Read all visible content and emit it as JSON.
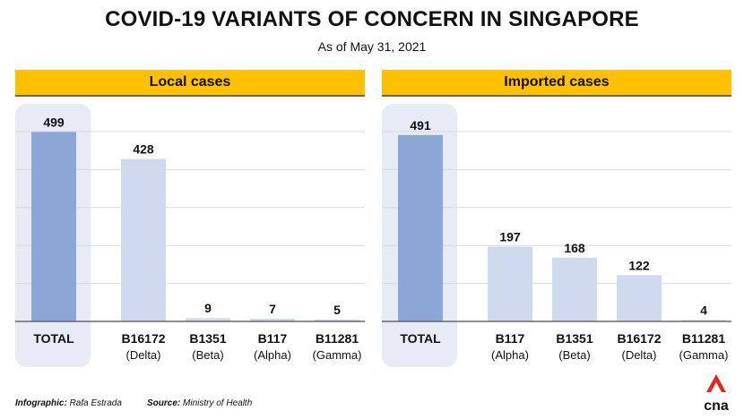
{
  "header": {
    "title": "COVID-19 VARIANTS OF CONCERN IN SINGAPORE",
    "subtitle": "As of May 31, 2021"
  },
  "colors": {
    "banner": "#FFC000",
    "total_bar": "#8BA7D6",
    "variant_bar": "#CFDAEE",
    "total_highlight": "#E6EBF6",
    "gridline": "#D9D9D9",
    "axis": "#666666",
    "logo_red": "#E2261D"
  },
  "chart_data": [
    {
      "type": "bar",
      "title": "Local cases",
      "categories": [
        "TOTAL",
        "B16172",
        "B1351",
        "B117",
        "B11281"
      ],
      "category_sublabels": [
        "",
        "(Delta)",
        "(Beta)",
        "(Alpha)",
        "(Gamma)"
      ],
      "values": [
        499,
        428,
        9,
        7,
        5
      ],
      "data_labels": [
        "499",
        "428",
        "9",
        "7",
        "5"
      ],
      "ylim": [
        0,
        500
      ],
      "grid": true,
      "xlabel": "",
      "ylabel": ""
    },
    {
      "type": "bar",
      "title": "Imported cases",
      "categories": [
        "TOTAL",
        "B117",
        "B1351",
        "B16172",
        "B11281"
      ],
      "category_sublabels": [
        "",
        "(Alpha)",
        "(Beta)",
        "(Delta)",
        "(Gamma)"
      ],
      "values": [
        491,
        197,
        168,
        122,
        4
      ],
      "data_labels": [
        "491",
        "197",
        "168",
        "122",
        "4"
      ],
      "ylim": [
        0,
        500
      ],
      "grid": true,
      "xlabel": "",
      "ylabel": ""
    }
  ],
  "footer": {
    "infographic_label": "Infographic:",
    "infographic_value": "Rafa Estrada",
    "source_label": "Source:",
    "source_value": "Ministry of Health"
  },
  "logo": {
    "text": "cna",
    "icon": "cna-logo-icon"
  }
}
